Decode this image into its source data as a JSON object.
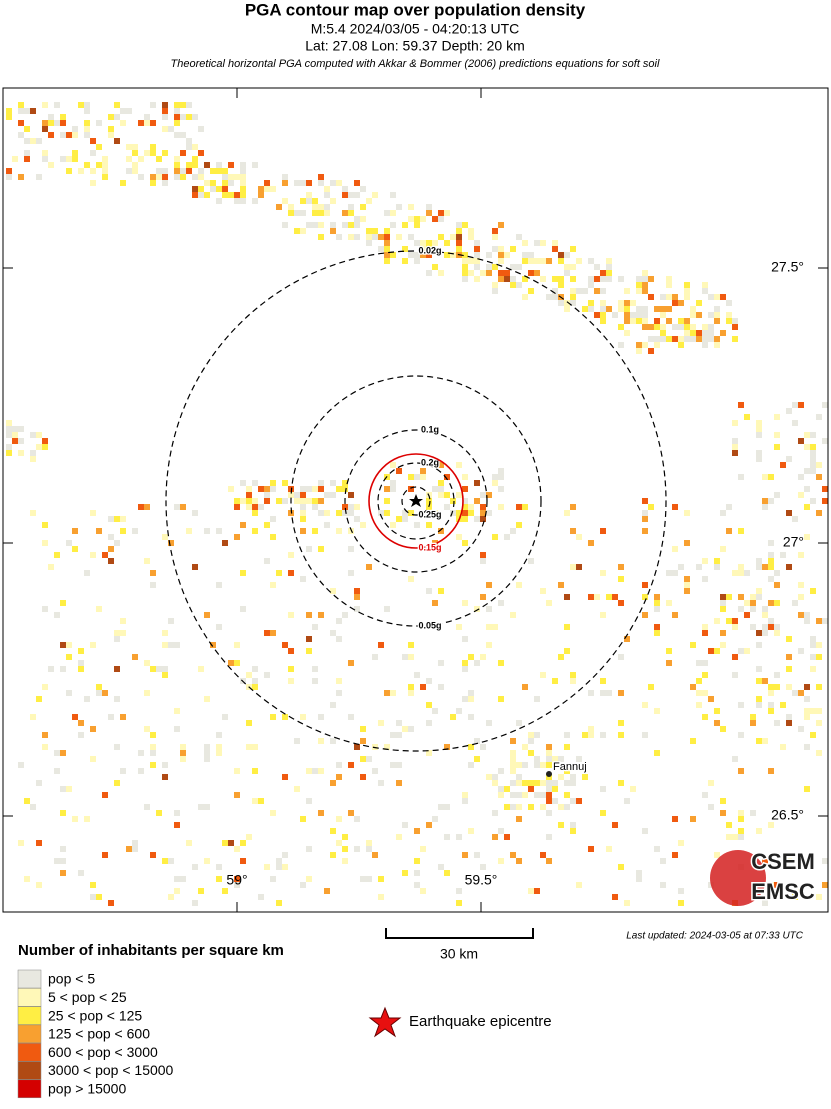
{
  "header": {
    "title": "PGA contour map over population density",
    "event": "M:5.4 2024/03/05 - 04:20:13 UTC",
    "location": "Lat: 27.08 Lon: 59.37 Depth: 20 km",
    "note": "Theoretical horizontal PGA computed with Akkar & Bommer (2006) predictions equations for soft soil"
  },
  "map": {
    "lat_labels": [
      "27.5°",
      "27°",
      "26.5°"
    ],
    "lon_labels": [
      "59°",
      "59.5°"
    ],
    "contours": [
      {
        "label": "0.02g",
        "color": "#000000"
      },
      {
        "label": "0.05g",
        "color": "#000000"
      },
      {
        "label": "0.1g",
        "color": "#000000"
      },
      {
        "label": "0.2g",
        "color": "#000000"
      },
      {
        "label": "0.15g",
        "color": "#dd0000"
      },
      {
        "label": "0.25g",
        "color": "#000000"
      }
    ],
    "city": "Fannuj",
    "logo_top": "CSEM",
    "logo_bottom": "EMSC"
  },
  "scale": "30 km",
  "updated": "Last updated: 2024-03-05 at 07:33 UTC",
  "legend": {
    "title": "Number of inhabitants per square km",
    "items": [
      {
        "label": "pop < 5",
        "color": "#e8e8e0"
      },
      {
        "label": "5 < pop < 25",
        "color": "#fff8b8"
      },
      {
        "label": "25 < pop < 125",
        "color": "#ffee44"
      },
      {
        "label": "125 < pop < 600",
        "color": "#f8a030"
      },
      {
        "label": "600 < pop < 3000",
        "color": "#f05a10"
      },
      {
        "label": "3000 < pop < 15000",
        "color": "#b04a14"
      },
      {
        "label": "pop > 15000",
        "color": "#d40000"
      }
    ],
    "epicentre": "Earthquake epicentre"
  }
}
